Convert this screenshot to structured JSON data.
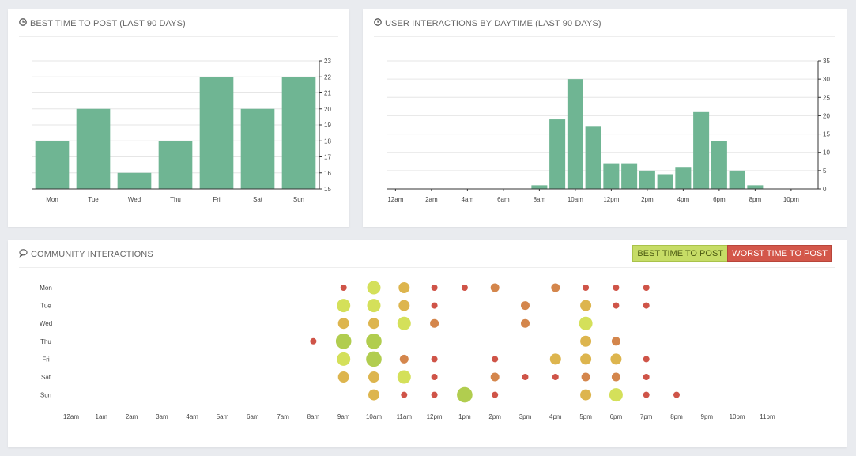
{
  "colors": {
    "bar": "#6fb593",
    "best": "#c6dc66",
    "mid": "#dfb04d",
    "worst": "#d3574a",
    "grid": "#e6e6e6",
    "axis": "#333333"
  },
  "panels": {
    "best_time": {
      "title": "BEST TIME TO POST (LAST 90 DAYS)",
      "icon": "clock-icon"
    },
    "interactions": {
      "title": "USER INTERACTIONS BY DAYTIME (LAST 90 DAYS)",
      "icon": "clock-icon"
    },
    "community": {
      "title": "COMMUNITY INTERACTIONS",
      "icon": "speech-bubble-icon",
      "best_label": "BEST TIME TO POST",
      "worst_label": "WORST TIME TO POST"
    }
  },
  "chart_data": [
    {
      "type": "bar",
      "title": "BEST TIME TO POST (LAST 90 DAYS)",
      "categories": [
        "Mon",
        "Tue",
        "Wed",
        "Thu",
        "Fri",
        "Sat",
        "Sun"
      ],
      "values": [
        18,
        20,
        16,
        18,
        22,
        20,
        22
      ],
      "ylim": [
        15,
        23
      ],
      "yticks": [
        "15",
        "16",
        "17",
        "18",
        "19",
        "20",
        "21",
        "22",
        "23"
      ],
      "yaxis_position": "right",
      "grid": true
    },
    {
      "type": "bar",
      "title": "USER INTERACTIONS BY DAYTIME (LAST 90 DAYS)",
      "categories": [
        "12am",
        "1am",
        "2am",
        "3am",
        "4am",
        "5am",
        "6am",
        "7am",
        "8am",
        "9am",
        "10am",
        "11am",
        "12pm",
        "1pm",
        "2pm",
        "3pm",
        "4pm",
        "5pm",
        "6pm",
        "7pm",
        "8pm",
        "9pm",
        "10pm",
        "11pm"
      ],
      "xtick_labels": [
        "12am",
        "2am",
        "4am",
        "6am",
        "8am",
        "10am",
        "12pm",
        "2pm",
        "4pm",
        "6pm",
        "8pm",
        "10pm"
      ],
      "values": [
        0,
        0,
        0,
        0,
        0,
        0,
        0,
        0,
        1,
        19,
        30,
        17,
        7,
        7,
        5,
        4,
        6,
        21,
        13,
        5,
        1,
        0,
        0,
        0
      ],
      "ylim": [
        0,
        35
      ],
      "yticks": [
        "0",
        "5",
        "10",
        "15",
        "20",
        "25",
        "30",
        "35"
      ],
      "yaxis_position": "right",
      "grid": true
    },
    {
      "type": "scatter",
      "title": "COMMUNITY INTERACTIONS",
      "days": [
        "Mon",
        "Tue",
        "Wed",
        "Thu",
        "Fri",
        "Sat",
        "Sun"
      ],
      "hours": [
        "12am",
        "1am",
        "2am",
        "3am",
        "4am",
        "5am",
        "6am",
        "7am",
        "8am",
        "9am",
        "10am",
        "11am",
        "12pm",
        "1pm",
        "2pm",
        "3pm",
        "4pm",
        "5pm",
        "6pm",
        "7pm",
        "8pm",
        "9pm",
        "10pm",
        "11pm"
      ],
      "points": [
        {
          "day": "Mon",
          "hour": "9am",
          "size": 1,
          "level": "worst"
        },
        {
          "day": "Mon",
          "hour": "10am",
          "size": 4,
          "level": "best"
        },
        {
          "day": "Mon",
          "hour": "11am",
          "size": 3,
          "level": "mid"
        },
        {
          "day": "Mon",
          "hour": "12pm",
          "size": 1,
          "level": "worst"
        },
        {
          "day": "Mon",
          "hour": "1pm",
          "size": 1,
          "level": "worst"
        },
        {
          "day": "Mon",
          "hour": "2pm",
          "size": 2,
          "level": "poor"
        },
        {
          "day": "Mon",
          "hour": "4pm",
          "size": 2,
          "level": "poor"
        },
        {
          "day": "Mon",
          "hour": "5pm",
          "size": 1,
          "level": "worst"
        },
        {
          "day": "Mon",
          "hour": "6pm",
          "size": 1,
          "level": "worst"
        },
        {
          "day": "Mon",
          "hour": "7pm",
          "size": 1,
          "level": "worst"
        },
        {
          "day": "Tue",
          "hour": "9am",
          "size": 4,
          "level": "best"
        },
        {
          "day": "Tue",
          "hour": "10am",
          "size": 4,
          "level": "best"
        },
        {
          "day": "Tue",
          "hour": "11am",
          "size": 3,
          "level": "mid"
        },
        {
          "day": "Tue",
          "hour": "12pm",
          "size": 1,
          "level": "worst"
        },
        {
          "day": "Tue",
          "hour": "3pm",
          "size": 2,
          "level": "poor"
        },
        {
          "day": "Tue",
          "hour": "5pm",
          "size": 3,
          "level": "mid"
        },
        {
          "day": "Tue",
          "hour": "6pm",
          "size": 1,
          "level": "worst"
        },
        {
          "day": "Tue",
          "hour": "7pm",
          "size": 1,
          "level": "worst"
        },
        {
          "day": "Wed",
          "hour": "9am",
          "size": 3,
          "level": "mid"
        },
        {
          "day": "Wed",
          "hour": "10am",
          "size": 3,
          "level": "mid"
        },
        {
          "day": "Wed",
          "hour": "11am",
          "size": 4,
          "level": "best"
        },
        {
          "day": "Wed",
          "hour": "12pm",
          "size": 2,
          "level": "poor"
        },
        {
          "day": "Wed",
          "hour": "3pm",
          "size": 2,
          "level": "poor"
        },
        {
          "day": "Wed",
          "hour": "5pm",
          "size": 4,
          "level": "best"
        },
        {
          "day": "Thu",
          "hour": "8am",
          "size": 1,
          "level": "worst"
        },
        {
          "day": "Thu",
          "hour": "9am",
          "size": 5,
          "level": "top"
        },
        {
          "day": "Thu",
          "hour": "10am",
          "size": 5,
          "level": "top"
        },
        {
          "day": "Thu",
          "hour": "5pm",
          "size": 3,
          "level": "mid"
        },
        {
          "day": "Thu",
          "hour": "6pm",
          "size": 2,
          "level": "poor"
        },
        {
          "day": "Fri",
          "hour": "9am",
          "size": 4,
          "level": "best"
        },
        {
          "day": "Fri",
          "hour": "10am",
          "size": 5,
          "level": "top"
        },
        {
          "day": "Fri",
          "hour": "11am",
          "size": 2,
          "level": "poor"
        },
        {
          "day": "Fri",
          "hour": "12pm",
          "size": 1,
          "level": "worst"
        },
        {
          "day": "Fri",
          "hour": "2pm",
          "size": 1,
          "level": "worst"
        },
        {
          "day": "Fri",
          "hour": "4pm",
          "size": 3,
          "level": "mid"
        },
        {
          "day": "Fri",
          "hour": "5pm",
          "size": 3,
          "level": "mid"
        },
        {
          "day": "Fri",
          "hour": "6pm",
          "size": 3,
          "level": "mid"
        },
        {
          "day": "Fri",
          "hour": "7pm",
          "size": 1,
          "level": "worst"
        },
        {
          "day": "Sat",
          "hour": "9am",
          "size": 3,
          "level": "mid"
        },
        {
          "day": "Sat",
          "hour": "10am",
          "size": 3,
          "level": "mid"
        },
        {
          "day": "Sat",
          "hour": "11am",
          "size": 4,
          "level": "best"
        },
        {
          "day": "Sat",
          "hour": "12pm",
          "size": 1,
          "level": "worst"
        },
        {
          "day": "Sat",
          "hour": "2pm",
          "size": 2,
          "level": "poor"
        },
        {
          "day": "Sat",
          "hour": "3pm",
          "size": 1,
          "level": "worst"
        },
        {
          "day": "Sat",
          "hour": "4pm",
          "size": 1,
          "level": "worst"
        },
        {
          "day": "Sat",
          "hour": "5pm",
          "size": 2,
          "level": "poor"
        },
        {
          "day": "Sat",
          "hour": "6pm",
          "size": 2,
          "level": "poor"
        },
        {
          "day": "Sat",
          "hour": "7pm",
          "size": 1,
          "level": "worst"
        },
        {
          "day": "Sun",
          "hour": "10am",
          "size": 3,
          "level": "mid"
        },
        {
          "day": "Sun",
          "hour": "11am",
          "size": 1,
          "level": "worst"
        },
        {
          "day": "Sun",
          "hour": "12pm",
          "size": 1,
          "level": "worst"
        },
        {
          "day": "Sun",
          "hour": "1pm",
          "size": 5,
          "level": "top"
        },
        {
          "day": "Sun",
          "hour": "2pm",
          "size": 1,
          "level": "worst"
        },
        {
          "day": "Sun",
          "hour": "5pm",
          "size": 3,
          "level": "mid"
        },
        {
          "day": "Sun",
          "hour": "6pm",
          "size": 4,
          "level": "best"
        },
        {
          "day": "Sun",
          "hour": "7pm",
          "size": 1,
          "level": "worst"
        },
        {
          "day": "Sun",
          "hour": "8pm",
          "size": 1,
          "level": "worst"
        }
      ]
    }
  ]
}
